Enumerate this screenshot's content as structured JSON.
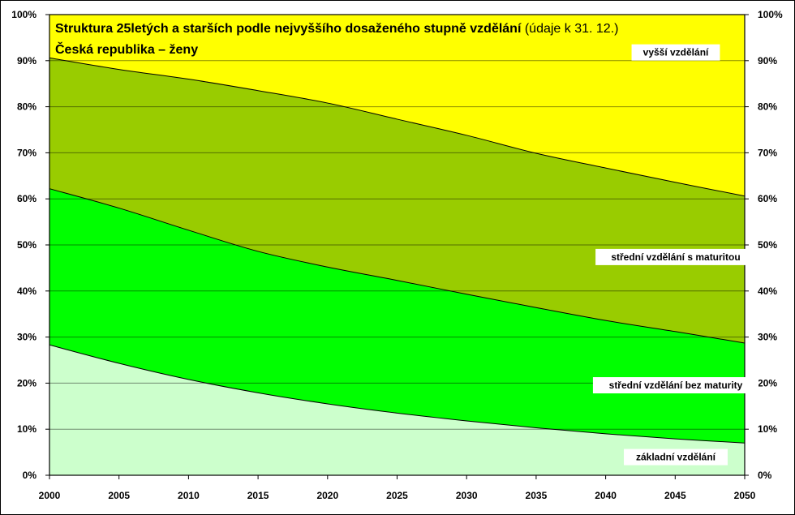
{
  "chart_data": {
    "type": "area",
    "stacked": true,
    "title_bold": "Struktura 25letých a starších podle nejvyššího dosaženého stupně vzdělání",
    "title_normal": " (údaje k 31. 12.)",
    "subtitle": "Česká republika – ženy",
    "xlabel": "",
    "ylabel": "",
    "x": [
      2000,
      2005,
      2010,
      2015,
      2020,
      2025,
      2030,
      2035,
      2040,
      2045,
      2050
    ],
    "x_ticks": [
      "2000",
      "2005",
      "2010",
      "2015",
      "2020",
      "2025",
      "2030",
      "2035",
      "2040",
      "2045",
      "2050"
    ],
    "y_ticks": [
      "0%",
      "10%",
      "20%",
      "30%",
      "40%",
      "50%",
      "60%",
      "70%",
      "80%",
      "90%",
      "100%"
    ],
    "ylim": [
      0,
      100
    ],
    "grid": true,
    "series": [
      {
        "name": "základní vzdělání",
        "color": "#ccffcc",
        "values": [
          28.3,
          24.3,
          20.8,
          17.9,
          15.5,
          13.5,
          11.8,
          10.3,
          9.0,
          7.9,
          7.0
        ]
      },
      {
        "name": "střední vzdělání bez maturity",
        "color": "#00ff00",
        "values": [
          33.9,
          33.7,
          32.4,
          30.7,
          29.7,
          28.8,
          27.5,
          26.1,
          24.6,
          23.3,
          21.7
        ]
      },
      {
        "name": "střední vzdělání s maturitou",
        "color": "#99cc00",
        "values": [
          28.4,
          30.1,
          32.8,
          34.9,
          35.6,
          35.0,
          34.5,
          33.5,
          33.1,
          32.4,
          31.9
        ]
      },
      {
        "name": "vyšší vzdělání",
        "color": "#ffff00",
        "values": [
          9.4,
          11.9,
          14.0,
          16.5,
          19.2,
          22.7,
          26.2,
          30.1,
          33.3,
          36.4,
          39.4
        ]
      }
    ]
  }
}
